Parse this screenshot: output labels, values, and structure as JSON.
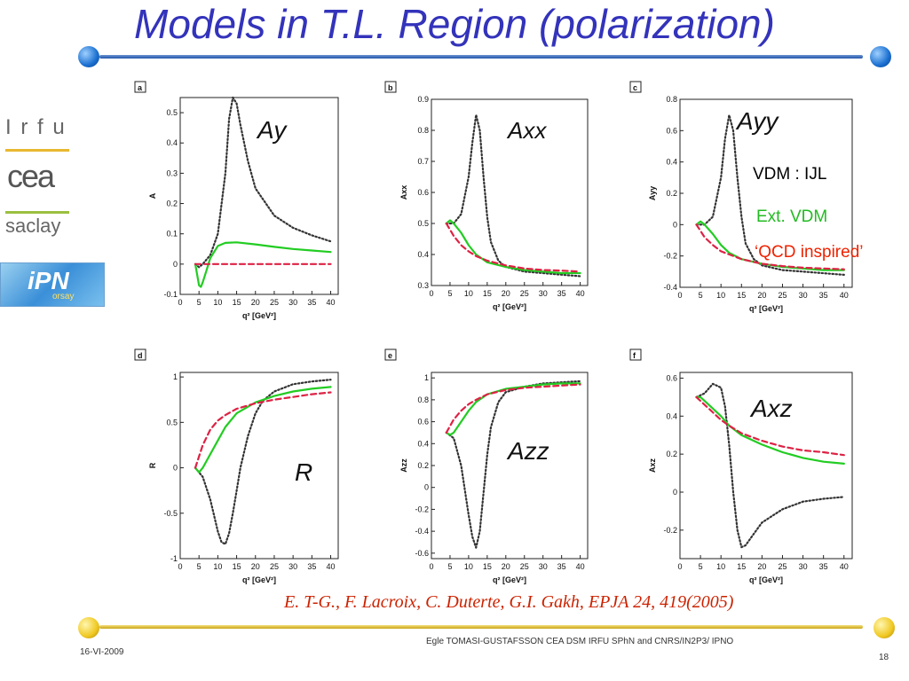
{
  "slide": {
    "title": "Models in T.L.  Region (polarization)",
    "citation": "E. T-G., F. Lacroix, C. Duterte, G.I. Gakh, EPJA 24, 419(2005)",
    "footer_date": "16-VI-2009",
    "footer_author": "Egle TOMASI-GUSTAFSSON     CEA DSM IRFU SPhN and   CNRS/IN2P3/ IPNO",
    "page_number": "18",
    "colors": {
      "title": "#3333bb",
      "rule": "#2255aa",
      "accent": "#e8c020"
    }
  },
  "logos": {
    "irfu": "I r f u",
    "cea": "cea",
    "saclay": "saclay",
    "ipn": "iPN",
    "orsay": "orsay"
  },
  "legend": {
    "items": [
      {
        "label": "VDM : IJL",
        "color": "#000000"
      },
      {
        "label": "Ext. VDM",
        "color": "#22bb22"
      },
      {
        "label": "‘QCD inspired’",
        "color": "#ee2200"
      }
    ]
  },
  "chart_data": [
    {
      "type": "line",
      "panel": "a",
      "name": "Ay",
      "xlabel": "q² [GeV²]",
      "ylabel": "A",
      "xlim": [
        0,
        42
      ],
      "ylim": [
        -0.1,
        0.55
      ],
      "xticks": [
        0,
        5,
        10,
        15,
        20,
        25,
        30,
        35,
        40
      ],
      "yticks": [
        -0.1,
        0,
        0.1,
        0.2,
        0.3,
        0.4,
        0.5
      ],
      "series": [
        {
          "style": "dotted",
          "color": "#333333",
          "x": [
            4,
            5,
            6,
            8,
            10,
            12,
            13,
            14,
            15,
            16,
            18,
            20,
            25,
            30,
            35,
            40
          ],
          "y": [
            0,
            -0.01,
            0,
            0.03,
            0.1,
            0.3,
            0.48,
            0.55,
            0.53,
            0.46,
            0.34,
            0.25,
            0.16,
            0.12,
            0.095,
            0.075
          ]
        },
        {
          "style": "solid",
          "color": "#22cc22",
          "x": [
            4,
            5,
            5.5,
            6,
            7,
            8,
            10,
            12,
            15,
            20,
            25,
            30,
            35,
            40
          ],
          "y": [
            0,
            -0.07,
            -0.075,
            -0.06,
            -0.02,
            0.02,
            0.06,
            0.07,
            0.072,
            0.065,
            0.057,
            0.05,
            0.045,
            0.04
          ]
        },
        {
          "style": "dashed",
          "color": "#dd2244",
          "x": [
            4,
            10,
            20,
            30,
            40
          ],
          "y": [
            0,
            0,
            0,
            0,
            0
          ]
        }
      ]
    },
    {
      "type": "line",
      "panel": "b",
      "name": "Axx",
      "xlabel": "q² [GeV²]",
      "ylabel": "Axx",
      "xlim": [
        0,
        42
      ],
      "ylim": [
        0.3,
        0.9
      ],
      "xticks": [
        0,
        5,
        10,
        15,
        20,
        25,
        30,
        35,
        40
      ],
      "yticks": [
        0.3,
        0.4,
        0.5,
        0.6,
        0.7,
        0.8,
        0.9
      ],
      "series": [
        {
          "style": "dotted",
          "color": "#333333",
          "x": [
            4,
            6,
            8,
            10,
            11,
            12,
            13,
            14,
            15,
            16,
            18,
            20,
            25,
            30,
            35,
            40
          ],
          "y": [
            0.5,
            0.5,
            0.53,
            0.65,
            0.76,
            0.85,
            0.8,
            0.65,
            0.52,
            0.44,
            0.38,
            0.36,
            0.345,
            0.34,
            0.335,
            0.33
          ]
        },
        {
          "style": "solid",
          "color": "#22cc22",
          "x": [
            4,
            5,
            6,
            8,
            10,
            12,
            15,
            20,
            25,
            30,
            35,
            40
          ],
          "y": [
            0.5,
            0.51,
            0.5,
            0.47,
            0.43,
            0.4,
            0.375,
            0.36,
            0.35,
            0.345,
            0.34,
            0.34
          ]
        },
        {
          "style": "dashed",
          "color": "#dd2244",
          "x": [
            4,
            6,
            8,
            10,
            12,
            15,
            20,
            25,
            30,
            35,
            40
          ],
          "y": [
            0.5,
            0.46,
            0.43,
            0.41,
            0.395,
            0.38,
            0.365,
            0.355,
            0.35,
            0.348,
            0.345
          ]
        }
      ]
    },
    {
      "type": "line",
      "panel": "c",
      "name": "Ayy",
      "xlabel": "q² [GeV²]",
      "ylabel": "Ayy",
      "xlim": [
        0,
        42
      ],
      "ylim": [
        -0.4,
        0.8
      ],
      "xticks": [
        0,
        5,
        10,
        15,
        20,
        25,
        30,
        35,
        40
      ],
      "yticks": [
        -0.4,
        -0.2,
        0,
        0.2,
        0.4,
        0.6,
        0.8
      ],
      "series": [
        {
          "style": "dotted",
          "color": "#333333",
          "x": [
            4,
            6,
            8,
            10,
            11,
            12,
            13,
            14,
            15,
            16,
            18,
            20,
            25,
            30,
            35,
            40
          ],
          "y": [
            0,
            0,
            0.05,
            0.3,
            0.55,
            0.7,
            0.6,
            0.3,
            0.05,
            -0.12,
            -0.22,
            -0.26,
            -0.29,
            -0.3,
            -0.31,
            -0.32
          ]
        },
        {
          "style": "solid",
          "color": "#22cc22",
          "x": [
            4,
            5,
            6,
            8,
            10,
            12,
            15,
            20,
            25,
            30,
            35,
            40
          ],
          "y": [
            0,
            0.02,
            0,
            -0.06,
            -0.13,
            -0.18,
            -0.22,
            -0.25,
            -0.27,
            -0.28,
            -0.29,
            -0.29
          ]
        },
        {
          "style": "dashed",
          "color": "#dd2244",
          "x": [
            4,
            6,
            8,
            10,
            12,
            15,
            20,
            25,
            30,
            35,
            40
          ],
          "y": [
            0,
            -0.08,
            -0.13,
            -0.17,
            -0.19,
            -0.22,
            -0.25,
            -0.265,
            -0.275,
            -0.28,
            -0.285
          ]
        }
      ]
    },
    {
      "type": "line",
      "panel": "d",
      "name": "R",
      "xlabel": "q² [GeV²]",
      "ylabel": "R",
      "xlim": [
        0,
        42
      ],
      "ylim": [
        -1,
        1.05
      ],
      "xticks": [
        0,
        5,
        10,
        15,
        20,
        25,
        30,
        35,
        40
      ],
      "yticks": [
        -1,
        -0.5,
        0,
        0.5,
        1
      ],
      "series": [
        {
          "style": "dotted",
          "color": "#333333",
          "x": [
            4,
            6,
            8,
            10,
            11,
            12,
            13,
            14,
            15,
            16,
            18,
            20,
            22,
            25,
            30,
            35,
            40
          ],
          "y": [
            0,
            -0.1,
            -0.35,
            -0.7,
            -0.82,
            -0.84,
            -0.72,
            -0.5,
            -0.25,
            0,
            0.35,
            0.6,
            0.74,
            0.84,
            0.92,
            0.95,
            0.97
          ]
        },
        {
          "style": "solid",
          "color": "#22cc22",
          "x": [
            4,
            5,
            6,
            8,
            10,
            12,
            15,
            20,
            25,
            30,
            35,
            40
          ],
          "y": [
            0,
            -0.05,
            0,
            0.15,
            0.3,
            0.45,
            0.6,
            0.72,
            0.79,
            0.84,
            0.87,
            0.89
          ]
        },
        {
          "style": "dashed",
          "color": "#dd2244",
          "x": [
            4,
            6,
            8,
            10,
            12,
            15,
            20,
            25,
            30,
            35,
            40
          ],
          "y": [
            0,
            0.25,
            0.42,
            0.52,
            0.58,
            0.65,
            0.71,
            0.75,
            0.78,
            0.81,
            0.83
          ]
        }
      ]
    },
    {
      "type": "line",
      "panel": "e",
      "name": "Azz",
      "xlabel": "q² [GeV²]",
      "ylabel": "Azz",
      "xlim": [
        0,
        42
      ],
      "ylim": [
        -0.65,
        1.05
      ],
      "xticks": [
        0,
        5,
        10,
        15,
        20,
        25,
        30,
        35,
        40
      ],
      "yticks": [
        -0.6,
        -0.4,
        -0.2,
        0,
        0.2,
        0.4,
        0.6,
        0.8,
        1
      ],
      "series": [
        {
          "style": "dotted",
          "color": "#333333",
          "x": [
            4,
            6,
            8,
            10,
            11,
            12,
            13,
            14,
            15,
            16,
            18,
            20,
            25,
            30,
            35,
            40
          ],
          "y": [
            0.5,
            0.45,
            0.2,
            -0.25,
            -0.45,
            -0.55,
            -0.4,
            -0.05,
            0.3,
            0.55,
            0.78,
            0.87,
            0.92,
            0.95,
            0.96,
            0.97
          ]
        },
        {
          "style": "solid",
          "color": "#22cc22",
          "x": [
            4,
            5,
            6,
            8,
            10,
            12,
            15,
            20,
            25,
            30,
            35,
            40
          ],
          "y": [
            0.5,
            0.48,
            0.5,
            0.6,
            0.7,
            0.78,
            0.85,
            0.9,
            0.92,
            0.94,
            0.95,
            0.95
          ]
        },
        {
          "style": "dashed",
          "color": "#dd2244",
          "x": [
            4,
            6,
            8,
            10,
            12,
            15,
            20,
            25,
            30,
            35,
            40
          ],
          "y": [
            0.5,
            0.62,
            0.7,
            0.76,
            0.8,
            0.85,
            0.89,
            0.91,
            0.92,
            0.93,
            0.94
          ]
        }
      ]
    },
    {
      "type": "line",
      "panel": "f",
      "name": "Axz",
      "xlabel": "q² [GeV²]",
      "ylabel": "Axz",
      "xlim": [
        0,
        42
      ],
      "ylim": [
        -0.35,
        0.63
      ],
      "xticks": [
        0,
        5,
        10,
        15,
        20,
        25,
        30,
        35,
        40
      ],
      "yticks": [
        -0.2,
        0,
        0.2,
        0.4,
        0.6
      ],
      "series": [
        {
          "style": "dotted",
          "color": "#333333",
          "x": [
            4,
            6,
            8,
            10,
            11,
            12,
            13,
            14,
            15,
            16,
            18,
            20,
            25,
            30,
            35,
            40
          ],
          "y": [
            0.5,
            0.52,
            0.57,
            0.55,
            0.45,
            0.25,
            0,
            -0.2,
            -0.29,
            -0.28,
            -0.22,
            -0.16,
            -0.09,
            -0.05,
            -0.035,
            -0.025
          ]
        },
        {
          "style": "solid",
          "color": "#22cc22",
          "x": [
            4,
            5,
            6,
            8,
            10,
            12,
            15,
            20,
            25,
            30,
            35,
            40
          ],
          "y": [
            0.5,
            0.5,
            0.48,
            0.44,
            0.4,
            0.35,
            0.3,
            0.25,
            0.21,
            0.18,
            0.16,
            0.15
          ]
        },
        {
          "style": "dashed",
          "color": "#dd2244",
          "x": [
            4,
            6,
            8,
            10,
            12,
            15,
            20,
            25,
            30,
            35,
            40
          ],
          "y": [
            0.5,
            0.46,
            0.42,
            0.38,
            0.35,
            0.31,
            0.27,
            0.24,
            0.22,
            0.21,
            0.195
          ]
        }
      ]
    }
  ]
}
